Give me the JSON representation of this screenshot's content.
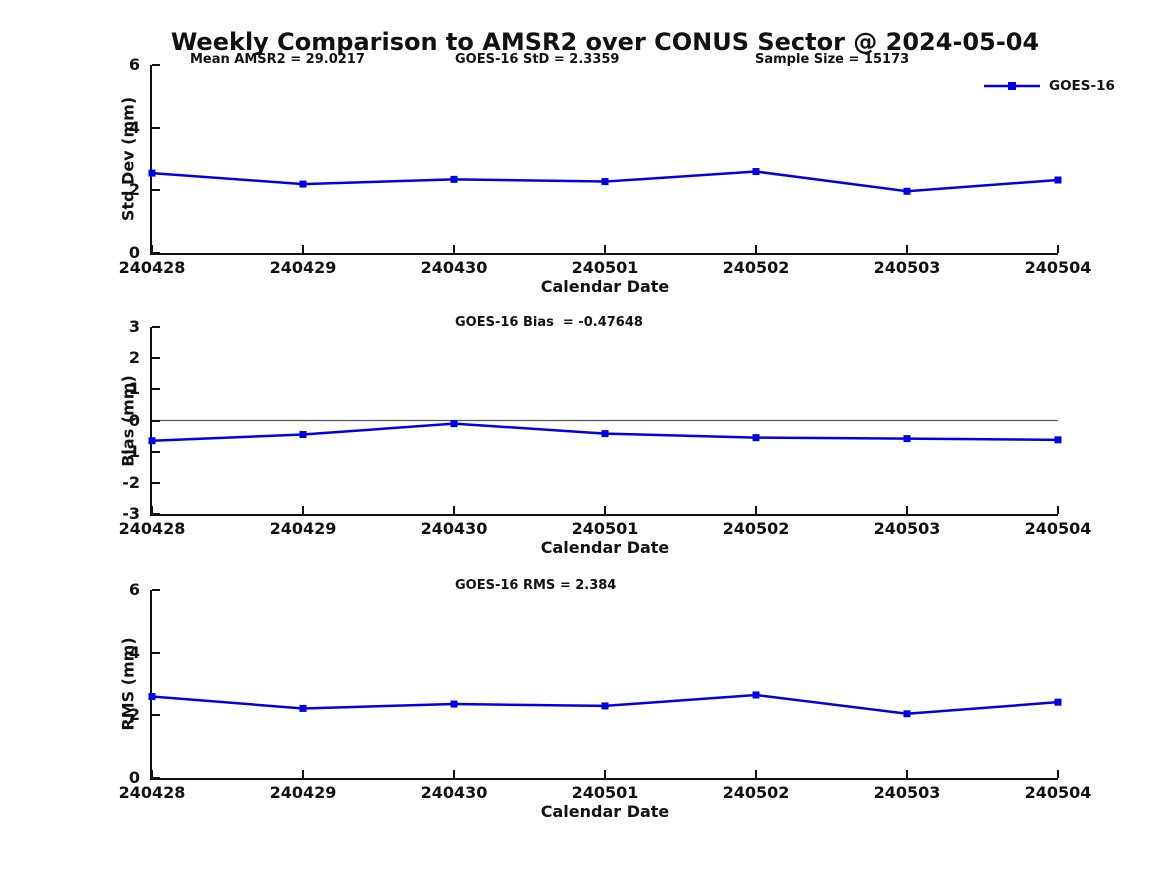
{
  "header": {
    "title": "Weekly Comparison to AMSR2 over CONUS Sector @ 2024-05-04"
  },
  "legend": {
    "label": "GOES-16"
  },
  "colors": {
    "line": "#0000E6",
    "marker": "#0000E6",
    "zero_line": "#555555",
    "axis": "#111111",
    "text": "#111111",
    "background": "#ffffff"
  },
  "chart_data": [
    {
      "type": "line",
      "categories": [
        "240428",
        "240429",
        "240430",
        "240501",
        "240502",
        "240503",
        "240504"
      ],
      "series": [
        {
          "name": "GOES-16",
          "values": [
            2.55,
            2.2,
            2.35,
            2.28,
            2.6,
            1.97,
            2.33
          ]
        }
      ],
      "annotations": [
        "Mean AMSR2 = 29.0217",
        "GOES-16 StD = 2.3359",
        "Sample Size = 15173"
      ],
      "xlabel": "Calendar Date",
      "ylabel": "Std Dev (mm)",
      "ylim": [
        0,
        6
      ],
      "yticks": [
        0,
        2,
        4,
        6
      ],
      "zero_line": false,
      "grid": false,
      "legend_position": "upper-right-outside",
      "legend_entries": [
        "GOES-16"
      ]
    },
    {
      "type": "line",
      "categories": [
        "240428",
        "240429",
        "240430",
        "240501",
        "240502",
        "240503",
        "240504"
      ],
      "series": [
        {
          "name": "GOES-16",
          "values": [
            -0.65,
            -0.45,
            -0.1,
            -0.42,
            -0.55,
            -0.58,
            -0.62
          ]
        }
      ],
      "annotations": [
        "GOES-16 Bias  = -0.47648"
      ],
      "xlabel": "Calendar Date",
      "ylabel": "Bias (mm)",
      "ylim": [
        -3,
        3
      ],
      "yticks": [
        3,
        2,
        1,
        0,
        -1,
        -2,
        -3
      ],
      "zero_line": true,
      "grid": false
    },
    {
      "type": "line",
      "categories": [
        "240428",
        "240429",
        "240430",
        "240501",
        "240502",
        "240503",
        "240504"
      ],
      "series": [
        {
          "name": "GOES-16",
          "values": [
            2.6,
            2.22,
            2.36,
            2.3,
            2.65,
            2.05,
            2.42
          ]
        }
      ],
      "annotations": [
        "GOES-16 RMS = 2.384"
      ],
      "xlabel": "Calendar Date",
      "ylabel": "RMS (mm)",
      "ylim": [
        0,
        6
      ],
      "yticks": [
        0,
        2,
        4,
        6
      ],
      "zero_line": false,
      "grid": false
    }
  ]
}
